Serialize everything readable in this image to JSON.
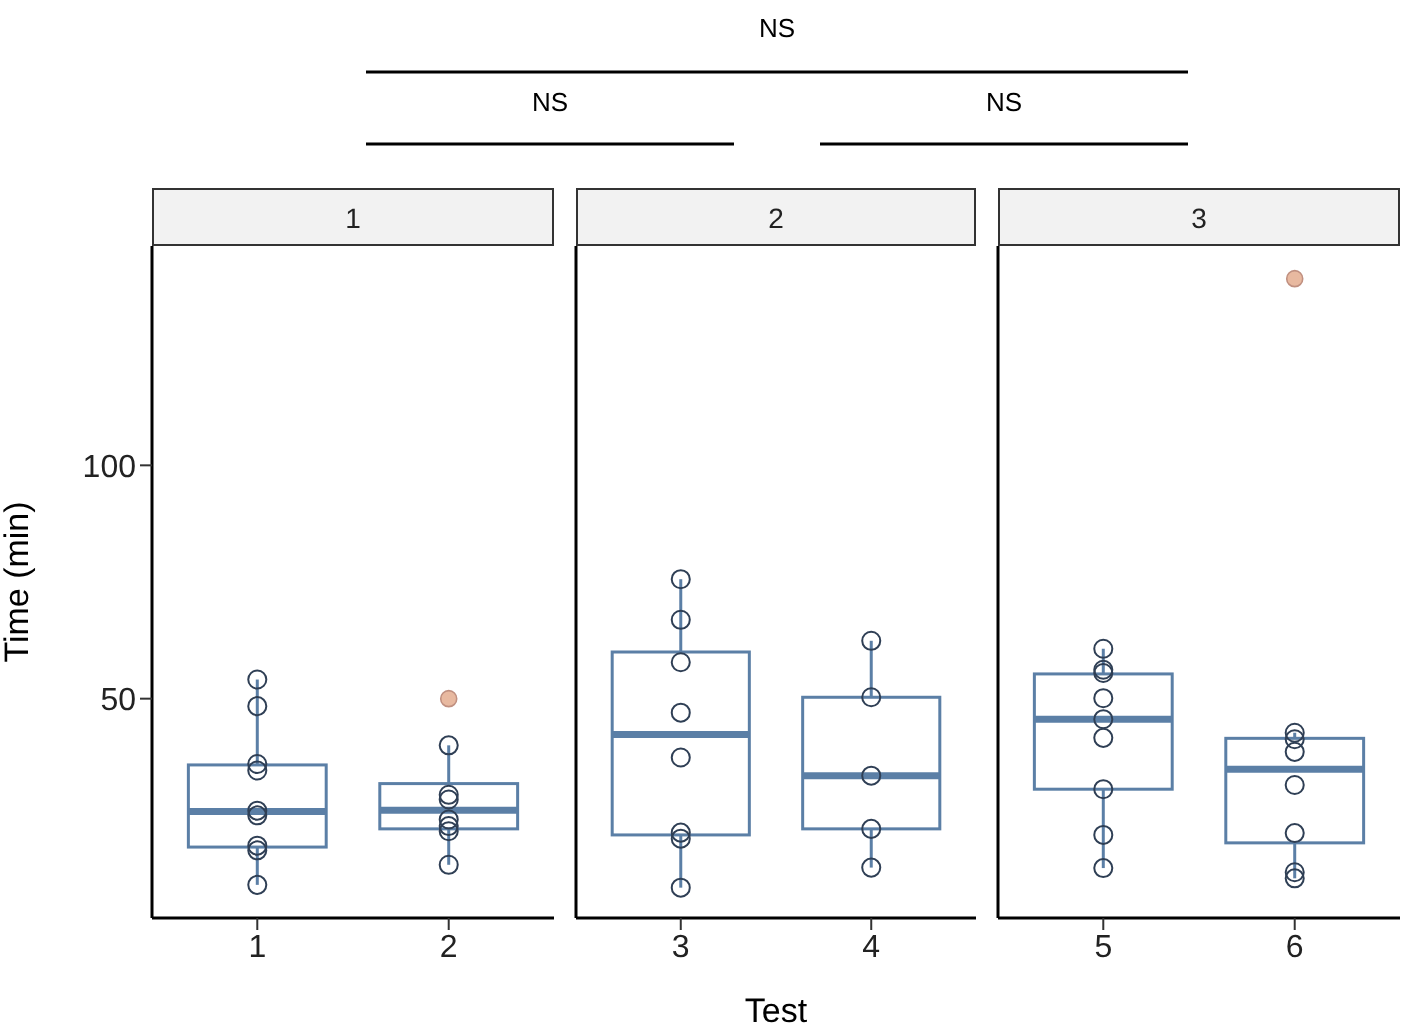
{
  "chart_data": [
    {
      "type": "box",
      "title": "1",
      "ylabel": "Time (min)",
      "categories": [
        "1",
        "2"
      ],
      "ylim": [
        3,
        147
      ],
      "yticks": [
        50,
        100
      ],
      "annotations": [
        "NS",
        "NS",
        "NS"
      ],
      "marker": "circle",
      "series": [
        {
          "color": "#5b7fa6",
          "boxes": [
            {
              "low": 10.1,
              "q1": 18.2,
              "median": 25.8,
              "q3": 35.8,
              "high": 54.1
            },
            {
              "low": 14.4,
              "q1": 22.1,
              "median": 26.1,
              "q3": 31.8,
              "high": 40.0,
              "outliers": [
                50.0
              ]
            }
          ]
        },
        {
          "type": "scatter",
          "color": "#2f3f55",
          "x": [
            "1",
            "1",
            "1",
            "1",
            "1",
            "1",
            "1",
            "1",
            "1",
            "2",
            "2",
            "2",
            "2",
            "2",
            "2",
            "2"
          ],
          "values": [
            54.1,
            48.4,
            36,
            34.6,
            26,
            25,
            18.5,
            17.5,
            10.1,
            40,
            29.4,
            28.4,
            24.1,
            22.7,
            21.6,
            14.4
          ]
        }
      ]
    },
    {
      "type": "box",
      "title": "2",
      "xlabel": "Test",
      "categories": [
        "3",
        "4"
      ],
      "ylim": [
        3,
        147
      ],
      "tick_labels": "x",
      "marker": "circle",
      "series": [
        {
          "color": "#5b7fa6",
          "boxes": [
            {
              "low": 9.5,
              "q1": 20.8,
              "median": 42.3,
              "q3": 60.0,
              "high": 75.6
            },
            {
              "low": 13.8,
              "q1": 22.1,
              "median": 33.5,
              "q3": 50.3,
              "high": 62.4
            }
          ]
        },
        {
          "type": "scatter",
          "color": "#2f3f55",
          "x": [
            "3",
            "3",
            "3",
            "3",
            "3",
            "3",
            "3",
            "3",
            "4",
            "4",
            "4",
            "4",
            "4"
          ],
          "values": [
            75.6,
            66.9,
            57.8,
            47,
            37.4,
            21.3,
            20,
            9.5,
            62.4,
            50.3,
            33.5,
            22.1,
            13.8
          ]
        }
      ]
    },
    {
      "type": "box",
      "title": "3",
      "categories": [
        "5",
        "6"
      ],
      "ylim": [
        3,
        147
      ],
      "tick_labels": "x",
      "marker": "circle",
      "series": [
        {
          "color": "#5b7fa6",
          "boxes": [
            {
              "low": 13.7,
              "q1": 30.6,
              "median": 45.6,
              "q3": 55.3,
              "high": 60.7
            },
            {
              "low": 11.5,
              "q1": 19.1,
              "median": 34.9,
              "q3": 41.5,
              "high": 42.7,
              "outliers": [
                140.0
              ]
            }
          ]
        },
        {
          "type": "scatter",
          "color": "#2f3f55",
          "x": [
            "5",
            "5",
            "5",
            "5",
            "5",
            "5",
            "5",
            "5",
            "5",
            "6",
            "6",
            "6",
            "6",
            "6",
            "6",
            "6"
          ],
          "values": [
            60.7,
            56.2,
            55.5,
            50.1,
            45.6,
            41.6,
            30.6,
            20.8,
            13.7,
            42.7,
            41.3,
            38.6,
            31.5,
            21.2,
            12.8,
            11.5
          ]
        }
      ]
    }
  ]
}
